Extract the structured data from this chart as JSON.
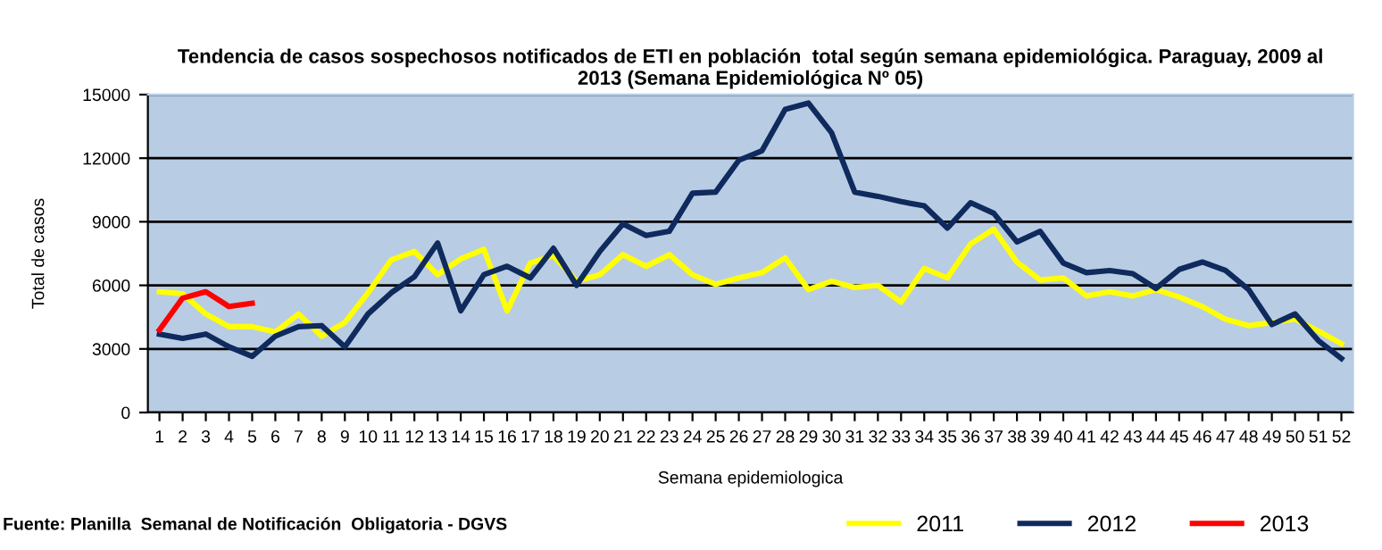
{
  "chart_data": {
    "type": "line",
    "title": "Tendencia de casos sospechosos notificados de ETI en población  total según semana epidemiológica. Paraguay, 2009 al\n2013 (Semana Epidemiológica Nº 05)",
    "xlabel": "Semana epidemiologica",
    "ylabel": "Total de casos",
    "categories": [
      "1",
      "2",
      "3",
      "4",
      "5",
      "6",
      "7",
      "8",
      "9",
      "10",
      "11",
      "12",
      "13",
      "14",
      "15",
      "16",
      "17",
      "18",
      "19",
      "20",
      "21",
      "22",
      "23",
      "24",
      "25",
      "26",
      "27",
      "28",
      "29",
      "30",
      "31",
      "32",
      "33",
      "34",
      "35",
      "36",
      "37",
      "38",
      "39",
      "40",
      "41",
      "42",
      "43",
      "44",
      "45",
      "46",
      "47",
      "48",
      "49",
      "50",
      "51",
      "52"
    ],
    "series": [
      {
        "name": "2011",
        "color": "#ffff00",
        "values": [
          5700,
          5600,
          4650,
          4050,
          4050,
          3800,
          4650,
          3600,
          4250,
          5650,
          7200,
          7600,
          6500,
          7250,
          7700,
          4800,
          7050,
          7400,
          6200,
          6500,
          7450,
          6900,
          7450,
          6500,
          6050,
          6350,
          6600,
          7300,
          5800,
          6200,
          5900,
          6000,
          5200,
          6800,
          6350,
          7950,
          8650,
          7100,
          6250,
          6350,
          5500,
          5700,
          5500,
          5800,
          5450,
          5000,
          4400,
          4100,
          4250,
          4400,
          3850,
          3250
        ]
      },
      {
        "name": "2012",
        "color": "#0f2a5c",
        "values": [
          3700,
          3500,
          3700,
          3100,
          2650,
          3600,
          4050,
          4100,
          3100,
          4650,
          5650,
          6400,
          8000,
          4800,
          6500,
          6900,
          6350,
          7750,
          6000,
          7600,
          8900,
          8350,
          8550,
          10350,
          10400,
          11900,
          12350,
          14300,
          14600,
          13200,
          10400,
          10200,
          9950,
          9750,
          8700,
          9900,
          9400,
          8050,
          8550,
          7050,
          6600,
          6700,
          6550,
          5850,
          6750,
          7100,
          6700,
          5800,
          4150,
          4650,
          3400,
          2550
        ]
      },
      {
        "name": "2013",
        "color": "#ff0000",
        "values": [
          3900,
          5400,
          5700,
          5000,
          5150,
          null,
          null,
          null,
          null,
          null,
          null,
          null,
          null,
          null,
          null,
          null,
          null,
          null,
          null,
          null,
          null,
          null,
          null,
          null,
          null,
          null,
          null,
          null,
          null,
          null,
          null,
          null,
          null,
          null,
          null,
          null,
          null,
          null,
          null,
          null,
          null,
          null,
          null,
          null,
          null,
          null,
          null,
          null,
          null,
          null,
          null,
          null
        ]
      }
    ],
    "ylim": [
      0,
      15000
    ],
    "yticks": [
      0,
      3000,
      6000,
      9000,
      12000,
      15000
    ],
    "grid": "y",
    "legend": "bottom right",
    "marker": "none",
    "line_style": "solid",
    "annotations": [
      "Fuente: Planilla  Semanal de Notificación  Obligatoria - DGVS"
    ]
  }
}
